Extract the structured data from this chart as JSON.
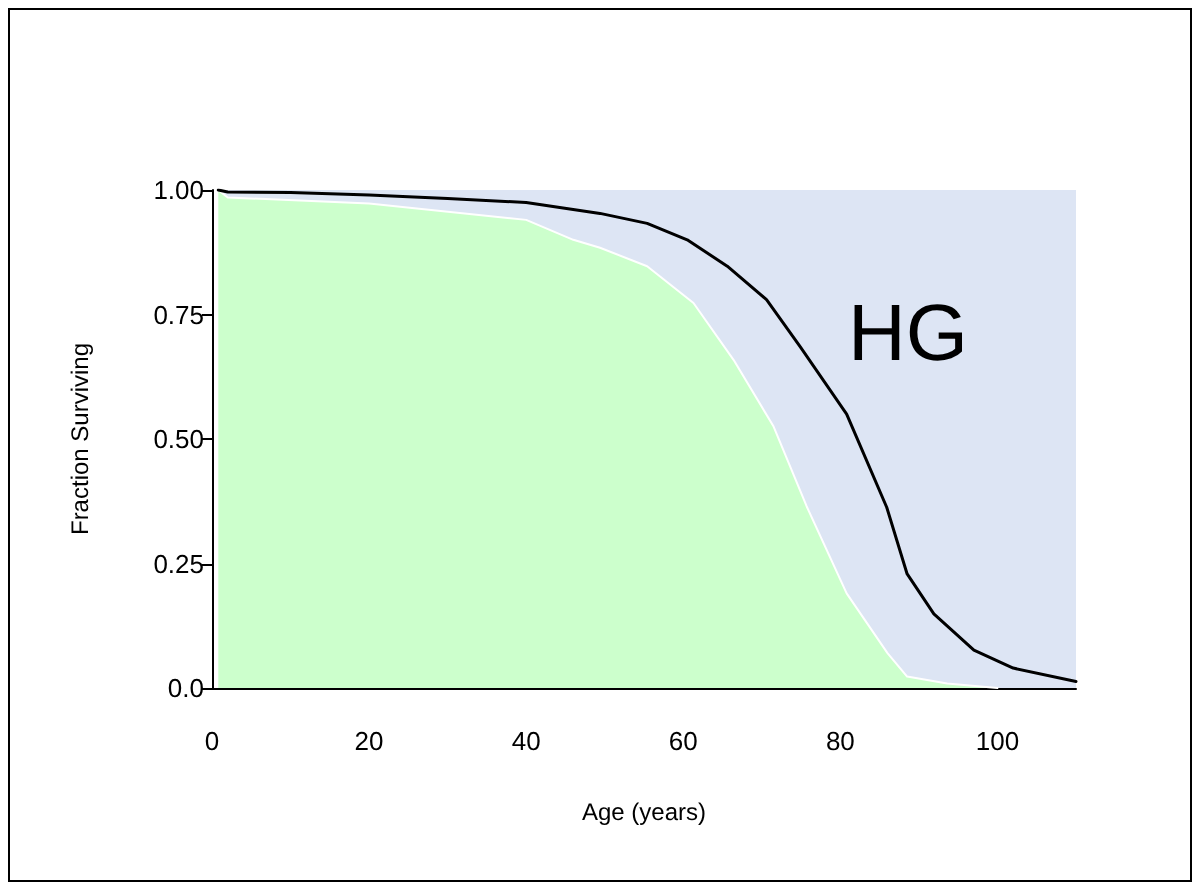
{
  "chart_data": {
    "type": "line",
    "xlabel": "Age (years)",
    "ylabel": "Fraction Surviving",
    "annotations": [
      "HG"
    ],
    "series": [
      {
        "type": "area",
        "color": "#ccffcc",
        "x": [
          0.8,
          2,
          20,
          40,
          46,
          49.4,
          55.4,
          61.3,
          66.4,
          71.5,
          75.7,
          80.8,
          86,
          88.5,
          93.6,
          100
        ],
        "values": [
          1.0,
          0.985,
          0.973,
          0.94,
          0.9,
          0.884,
          0.847,
          0.773,
          0.659,
          0.525,
          0.365,
          0.19,
          0.07,
          0.023,
          0.009,
          0
        ]
      },
      {
        "type": "line",
        "color": "#000000",
        "x": [
          0.8,
          2,
          10,
          20,
          30,
          40,
          49.4,
          55.4,
          60.5,
          65.6,
          70.6,
          74.9,
          80.8,
          85.9,
          88.5,
          91.9,
          97,
          102,
          110
        ],
        "values": [
          1.0,
          0.996,
          0.995,
          0.99,
          0.983,
          0.975,
          0.953,
          0.933,
          0.9,
          0.847,
          0.78,
          0.685,
          0.55,
          0.363,
          0.229,
          0.149,
          0.076,
          0.04,
          0.013
        ]
      }
    ],
    "bands": [
      {
        "axis": "x",
        "from": 1,
        "to": 110,
        "color": "#dde5f4"
      }
    ],
    "xlim": [
      0,
      110
    ],
    "xticks": [
      0,
      20,
      40,
      60,
      80,
      100
    ],
    "ylim": [
      0,
      1
    ],
    "yticks": [
      {
        "value": 0,
        "label": "0.0"
      },
      0.25,
      {
        "value": 0.5,
        "label": "0.50"
      },
      0.75,
      {
        "value": 1,
        "label": "1.00"
      }
    ],
    "grid": false,
    "marker": "none",
    "line_style": "solid"
  }
}
